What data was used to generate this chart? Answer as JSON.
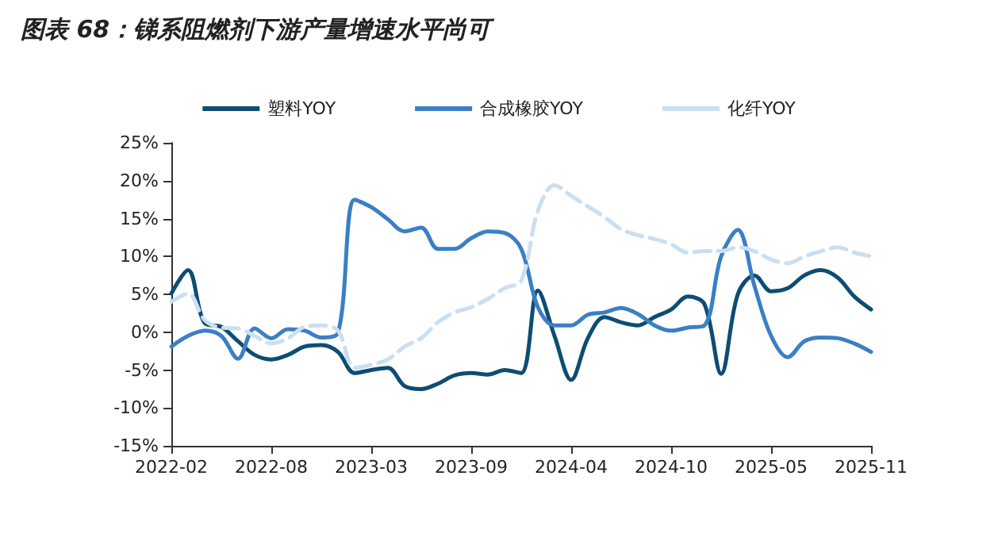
{
  "chart_data": {
    "type": "line",
    "title": "图表 68：锑系阻燃剂下游产量增速水平尚可",
    "categories": [
      "2022-02",
      null,
      null,
      null,
      null,
      null,
      "2022-08",
      null,
      null,
      null,
      null,
      null,
      "2023-03",
      null,
      null,
      null,
      null,
      null,
      "2023-09",
      null,
      null,
      null,
      null,
      null,
      "2024-04",
      null,
      null,
      null,
      null,
      null,
      "2024-10",
      null,
      null,
      null,
      null,
      null,
      "2025-05",
      null,
      null,
      null,
      null,
      null,
      "2025-11"
    ],
    "series": [
      {
        "name": "塑料YOY",
        "color": "#0d4d73",
        "line_style": "solid",
        "values": [
          5.1,
          8.2,
          1.2,
          0.7,
          -1.2,
          -3,
          -3.6,
          -3,
          -1.9,
          -1.7,
          -2.6,
          -5.4,
          -5,
          -4.7,
          -7.1,
          -7.5,
          -6.8,
          -5.7,
          -5.4,
          -5.6,
          -5,
          -5.4,
          5.5,
          -0.5,
          -6.3,
          -0.8,
          2,
          1.3,
          0.9,
          2,
          3,
          4.7,
          3.7,
          -5.5,
          5,
          7.5,
          5.4,
          5.8,
          7.5,
          8.2,
          7.2,
          4.7,
          3
        ]
      },
      {
        "name": "合成橡胶YOY",
        "color": "#3b7fc4",
        "line_style": "solid",
        "values": [
          -1.9,
          -0.5,
          0.2,
          -0.5,
          -3.5,
          0.5,
          -0.8,
          0.4,
          0.2,
          -0.7,
          -0.1,
          17.5,
          16.5,
          14.9,
          13.3,
          13.8,
          11,
          11,
          12.4,
          13.3,
          13.1,
          11,
          3.3,
          0.9,
          0.9,
          2.3,
          2.6,
          3.2,
          2.4,
          0.9,
          0.2,
          0.6,
          0.9,
          10,
          13.5,
          6.1,
          -0.5,
          -3.3,
          -1.2,
          -0.7,
          -0.8,
          -1.5,
          -2.6
        ]
      },
      {
        "name": "化纤YOY",
        "color": "#c9dff2",
        "line_style": "dashed",
        "values": [
          4,
          5.1,
          1.6,
          0.6,
          0.5,
          -0.5,
          -1.5,
          -0.8,
          0.7,
          0.9,
          0.2,
          -4.7,
          -4.3,
          -3.6,
          -1.9,
          -0.8,
          1.3,
          2.6,
          3.3,
          4.4,
          5.8,
          6.8,
          16,
          19.4,
          18,
          16.6,
          15.2,
          13.6,
          12.8,
          12.3,
          11.6,
          10.5,
          10.7,
          10.7,
          11.2,
          10.7,
          9.6,
          9.1,
          10,
          10.7,
          11.2,
          10.5,
          10
        ]
      }
    ],
    "ylim": [
      -15,
      25
    ],
    "yticks": [
      {
        "value": -15,
        "label": "-15%"
      },
      {
        "value": -10,
        "label": "-10%"
      },
      {
        "value": -5,
        "label": "-5%"
      },
      {
        "value": 0,
        "label": "0%"
      },
      {
        "value": 5,
        "label": "5%"
      },
      {
        "value": 10,
        "label": "10%"
      },
      {
        "value": 15,
        "label": "15%"
      },
      {
        "value": 20,
        "label": "20%"
      },
      {
        "value": 25,
        "label": "25%"
      }
    ],
    "grid": false,
    "legend": "top",
    "marker": "none"
  }
}
